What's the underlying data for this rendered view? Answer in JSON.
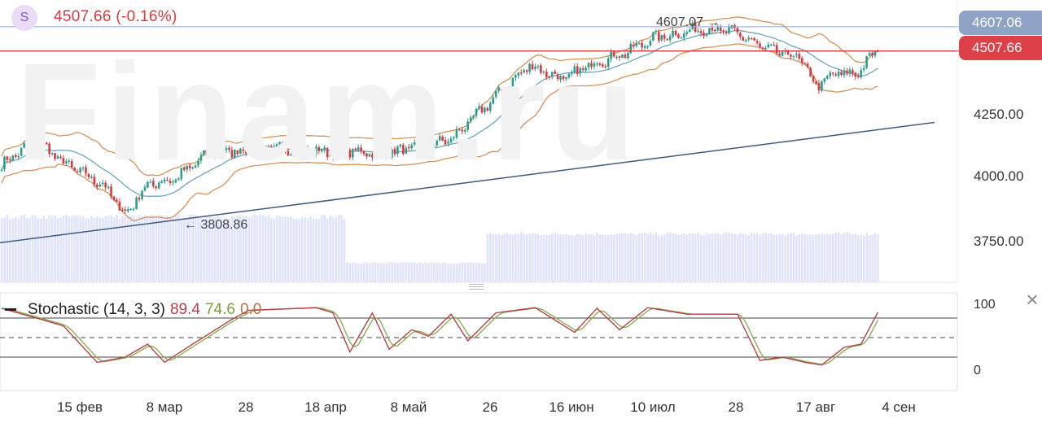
{
  "header": {
    "badge_letter": "S",
    "price_text": "4507.66 (-0.16%)"
  },
  "watermark": "Finam.ru",
  "price_tags": {
    "high": "4607.06",
    "last": "4507.66"
  },
  "annotations": {
    "high_label": "4607.07",
    "low_label": "3808.86"
  },
  "stochastic": {
    "name": "Stochastic (14, 3, 3)",
    "k_value": "89.4",
    "d_value": "74.6",
    "extra_value": "0.0",
    "levels": {
      "upper": 80,
      "middle": 50,
      "lower": 20
    },
    "ticks": [
      "100",
      "0"
    ]
  },
  "chart_data": {
    "type": "candlestick",
    "y_ticks": [
      4250,
      4000,
      3750
    ],
    "y_tick_labels": [
      "4250.00",
      "4000.00",
      "3750.00"
    ],
    "x_tick_labels": [
      "15 фев",
      "8 мар",
      "28",
      "18 апр",
      "8 май",
      "26",
      "16 июн",
      "10 июл",
      "28",
      "17 авг",
      "4 сен"
    ],
    "anchors": [
      {
        "d": 0,
        "v": 4040
      },
      {
        "d": 12,
        "v": 4145
      },
      {
        "d": 22,
        "v": 4050
      },
      {
        "d": 36,
        "v": 3960
      },
      {
        "d": 44,
        "v": 3840
      },
      {
        "d": 52,
        "v": 3960
      },
      {
        "d": 62,
        "v": 3985
      },
      {
        "d": 74,
        "v": 4090
      },
      {
        "d": 96,
        "v": 4110
      },
      {
        "d": 116,
        "v": 4095
      },
      {
        "d": 140,
        "v": 4095
      },
      {
        "d": 160,
        "v": 4145
      },
      {
        "d": 174,
        "v": 4300
      },
      {
        "d": 188,
        "v": 4450
      },
      {
        "d": 200,
        "v": 4390
      },
      {
        "d": 210,
        "v": 4455
      },
      {
        "d": 222,
        "v": 4500
      },
      {
        "d": 232,
        "v": 4560
      },
      {
        "d": 250,
        "v": 4600
      },
      {
        "d": 262,
        "v": 4580
      },
      {
        "d": 272,
        "v": 4515
      },
      {
        "d": 284,
        "v": 4480
      },
      {
        "d": 290,
        "v": 4365
      },
      {
        "d": 298,
        "v": 4420
      },
      {
        "d": 304,
        "v": 4410
      },
      {
        "d": 312,
        "v": 4515
      }
    ],
    "high_value": 4607.07,
    "low_value": 3808.86,
    "last_value": 4507.66,
    "high_line_value": 4607.06,
    "trendline": [
      {
        "x": 0,
        "v": 3722
      },
      {
        "x": 1148,
        "v": 4215
      }
    ],
    "stoch_anchors": [
      {
        "d": 0,
        "k": 95
      },
      {
        "d": 14,
        "k": 78
      },
      {
        "d": 22,
        "k": 68
      },
      {
        "d": 34,
        "k": 12
      },
      {
        "d": 44,
        "k": 20
      },
      {
        "d": 52,
        "k": 40
      },
      {
        "d": 58,
        "k": 12
      },
      {
        "d": 68,
        "k": 40
      },
      {
        "d": 82,
        "k": 78
      },
      {
        "d": 88,
        "k": 92
      },
      {
        "d": 112,
        "k": 96
      },
      {
        "d": 118,
        "k": 88
      },
      {
        "d": 124,
        "k": 28
      },
      {
        "d": 132,
        "k": 88
      },
      {
        "d": 138,
        "k": 32
      },
      {
        "d": 146,
        "k": 62
      },
      {
        "d": 152,
        "k": 52
      },
      {
        "d": 160,
        "k": 86
      },
      {
        "d": 166,
        "k": 45
      },
      {
        "d": 176,
        "k": 88
      },
      {
        "d": 190,
        "k": 96
      },
      {
        "d": 204,
        "k": 58
      },
      {
        "d": 212,
        "k": 95
      },
      {
        "d": 220,
        "k": 62
      },
      {
        "d": 230,
        "k": 96
      },
      {
        "d": 244,
        "k": 86
      },
      {
        "d": 262,
        "k": 86
      },
      {
        "d": 270,
        "k": 15
      },
      {
        "d": 278,
        "k": 20
      },
      {
        "d": 286,
        "k": 12
      },
      {
        "d": 292,
        "k": 8
      },
      {
        "d": 300,
        "k": 35
      },
      {
        "d": 306,
        "k": 40
      },
      {
        "d": 312,
        "k": 89
      }
    ],
    "volume_bands": [
      {
        "from": 0,
        "to": 122,
        "level": 0.95
      },
      {
        "from": 123,
        "to": 172,
        "level": 0.28
      },
      {
        "from": 173,
        "to": 214,
        "level": 0.7
      },
      {
        "from": 215,
        "to": 312,
        "level": 0.7
      }
    ],
    "colors": {
      "up": "#2a9d8f",
      "down": "#d9393f",
      "bb": "#d6925a",
      "ma": "#6aa8b8",
      "trend": "#3f5b7d",
      "volume": "#dfe3fb",
      "stoch_k": "#b3434a",
      "stoch_d": "#8fae55"
    }
  }
}
